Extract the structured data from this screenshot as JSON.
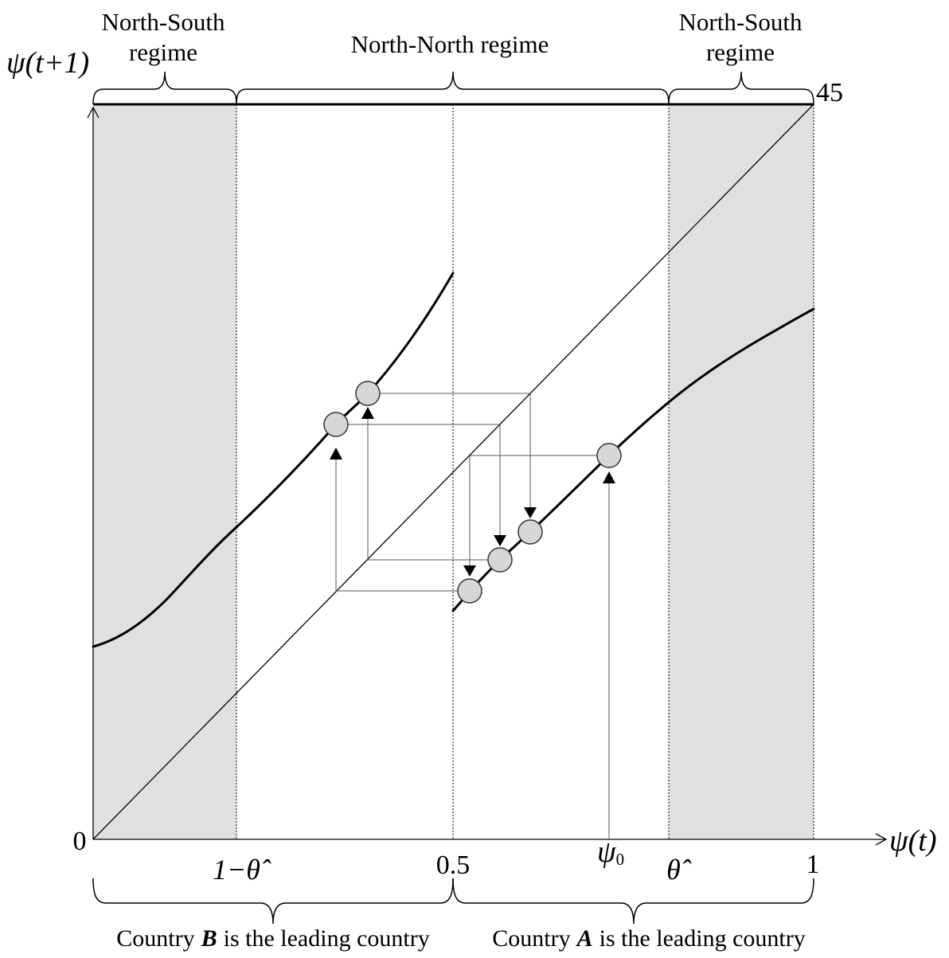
{
  "regimes": {
    "left": {
      "line1": "North-South",
      "line2": "regime"
    },
    "middle": "North-North regime",
    "right": {
      "line1": "North-South",
      "line2": "regime"
    }
  },
  "axes": {
    "y_label": "ψ(t+1)",
    "x_label": "ψ(t)",
    "diagonal_label": "45",
    "origin": "0"
  },
  "x_ticks": {
    "one_minus_theta_hat": "1−θ̂",
    "half": "0.5",
    "psi_zero": {
      "symbol": "ψ",
      "subscript": "0"
    },
    "theta_hat": "θ̂",
    "one": "1"
  },
  "leading_country": {
    "left": {
      "prefix": "Country",
      "country": "B",
      "suffix": "is the leading country"
    },
    "right": {
      "prefix": "Country",
      "country": "A",
      "suffix": "is the leading country"
    }
  },
  "colors": {
    "shaded_region": "#e0e0e0",
    "marker_fill": "#d6d6d6",
    "marker_stroke": "#333333"
  }
}
